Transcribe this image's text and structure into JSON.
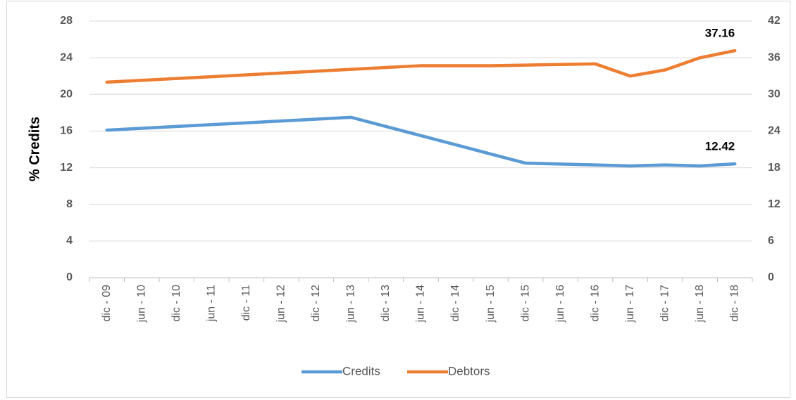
{
  "chart_data": {
    "type": "line",
    "y_label": "% Credits",
    "categories": [
      "dic - 09",
      "jun - 10",
      "dic - 10",
      "jun - 11",
      "dic - 11",
      "jun - 12",
      "dic - 12",
      "jun - 13",
      "dic - 13",
      "jun - 14",
      "dic - 14",
      "jun - 15",
      "dic - 15",
      "jun - 16",
      "dic - 16",
      "jun - 17",
      "dic - 17",
      "jun - 18",
      "dic - 18"
    ],
    "series": [
      {
        "name": "Credits",
        "color": "#5b9bd5",
        "axis": "y",
        "values": [
          16.1,
          16.3,
          16.5,
          16.7,
          16.9,
          17.1,
          17.3,
          17.5,
          16.5,
          15.5,
          14.5,
          13.5,
          12.5,
          12.4,
          12.3,
          12.2,
          12.3,
          12.2,
          12.42
        ]
      },
      {
        "name": "Debtors",
        "color": "#ed7d31",
        "axis": "y2",
        "values": [
          32.0,
          32.3,
          32.6,
          32.9,
          33.2,
          33.5,
          33.8,
          34.1,
          34.4,
          34.7,
          34.7,
          34.7,
          34.8,
          34.9,
          35.0,
          33.0,
          34.0,
          36.0,
          37.16
        ]
      }
    ],
    "ylim": [
      0,
      28
    ],
    "yticks": [
      0,
      4,
      8,
      12,
      16,
      20,
      24,
      28
    ],
    "y2lim": [
      0,
      42
    ],
    "y2ticks": [
      0,
      6,
      12,
      18,
      24,
      30,
      36,
      42
    ],
    "grid": true,
    "legend": "bottom"
  }
}
